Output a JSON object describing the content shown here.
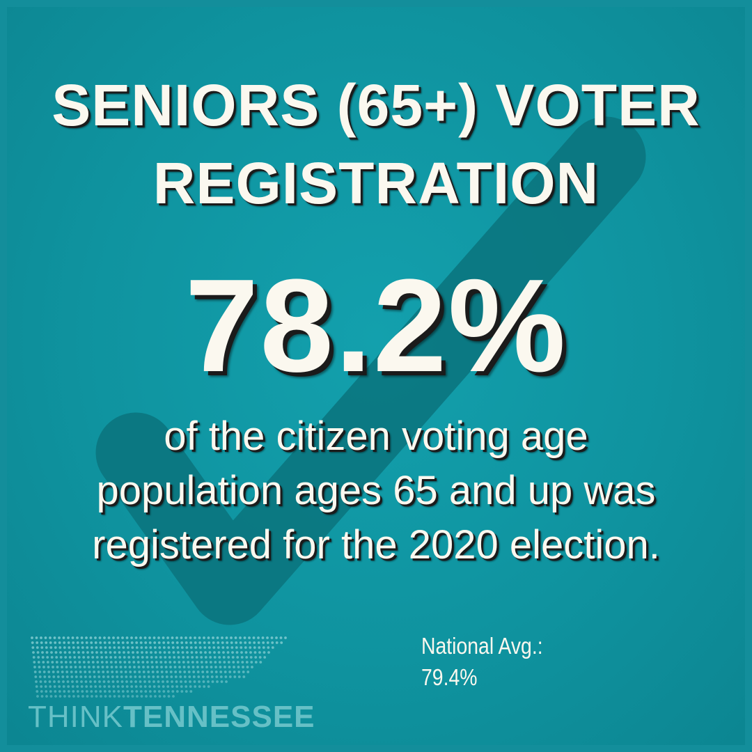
{
  "graphic": {
    "title_lines": [
      "SENIORS (65+) VOTER",
      "REGISTRATION"
    ],
    "headline_stat": "78.2%",
    "description_lines": [
      "of the citizen voting age",
      "population ages 65 and up was",
      "registered for the 2020 election."
    ],
    "comparison": {
      "label": "National Avg.:",
      "value": "79.4%"
    }
  },
  "logo": {
    "word_light": "THINK",
    "word_bold": "TENNESSEE",
    "mark_icon": "tennessee-state-dots-icon"
  },
  "decoration": {
    "background_icon": "checkmark-icon"
  },
  "colors": {
    "background": "#0f939f",
    "checkmark": "#0a6b74",
    "text": "#fbf8ef",
    "shadow": "#1b1b1b",
    "logo": "#66c0c6"
  }
}
